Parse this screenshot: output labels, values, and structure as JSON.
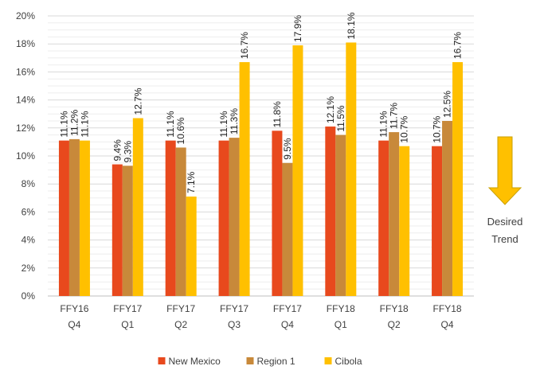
{
  "chart_data": {
    "type": "bar",
    "categories": [
      [
        "FFY16",
        "Q4"
      ],
      [
        "FFY17",
        "Q1"
      ],
      [
        "FFY17",
        "Q2"
      ],
      [
        "FFY17",
        "Q3"
      ],
      [
        "FFY17",
        "Q4"
      ],
      [
        "FFY18",
        "Q1"
      ],
      [
        "FFY18",
        "Q2"
      ],
      [
        "FFY18",
        "Q4"
      ]
    ],
    "series": [
      {
        "name": "New Mexico",
        "color": "#E8491D",
        "values": [
          11.1,
          9.4,
          11.1,
          11.1,
          11.8,
          12.1,
          11.1,
          10.7
        ],
        "labels": [
          "11.1%",
          "9.4%",
          "11.1%",
          "11.1%",
          "11.8%",
          "12.1%",
          "11.1%",
          "10.7%"
        ]
      },
      {
        "name": "Region 1",
        "color": "#C8893A",
        "values": [
          11.2,
          9.3,
          10.6,
          11.3,
          9.5,
          11.5,
          11.7,
          12.5
        ],
        "labels": [
          "11.2%",
          "9.3%",
          "10.6%",
          "11.3%",
          "9.5%",
          "11.5%",
          "11.7%",
          "12.5%"
        ]
      },
      {
        "name": "Cibola",
        "color": "#FFC000",
        "values": [
          11.1,
          12.7,
          7.1,
          16.7,
          17.9,
          18.1,
          10.7,
          16.7
        ],
        "labels": [
          "11.1%",
          "12.7%",
          "7.1%",
          "16.7%",
          "17.9%",
          "18.1%",
          "10.7%",
          "16.7%"
        ]
      }
    ],
    "ylim": [
      0,
      20
    ],
    "yticks": [
      0,
      2,
      4,
      6,
      8,
      10,
      12,
      14,
      16,
      18,
      20
    ],
    "ytick_labels": [
      "0%",
      "2%",
      "4%",
      "6%",
      "8%",
      "10%",
      "12%",
      "14%",
      "16%",
      "18%",
      "20%"
    ],
    "grid": true,
    "legend_position": "bottom",
    "title": "",
    "xlabel": "",
    "ylabel": "",
    "annotation": {
      "lines": [
        "Desired",
        "Trend"
      ],
      "arrow_color": "#FFC000",
      "arrow_outline": "#C9A000",
      "direction": "down"
    }
  }
}
